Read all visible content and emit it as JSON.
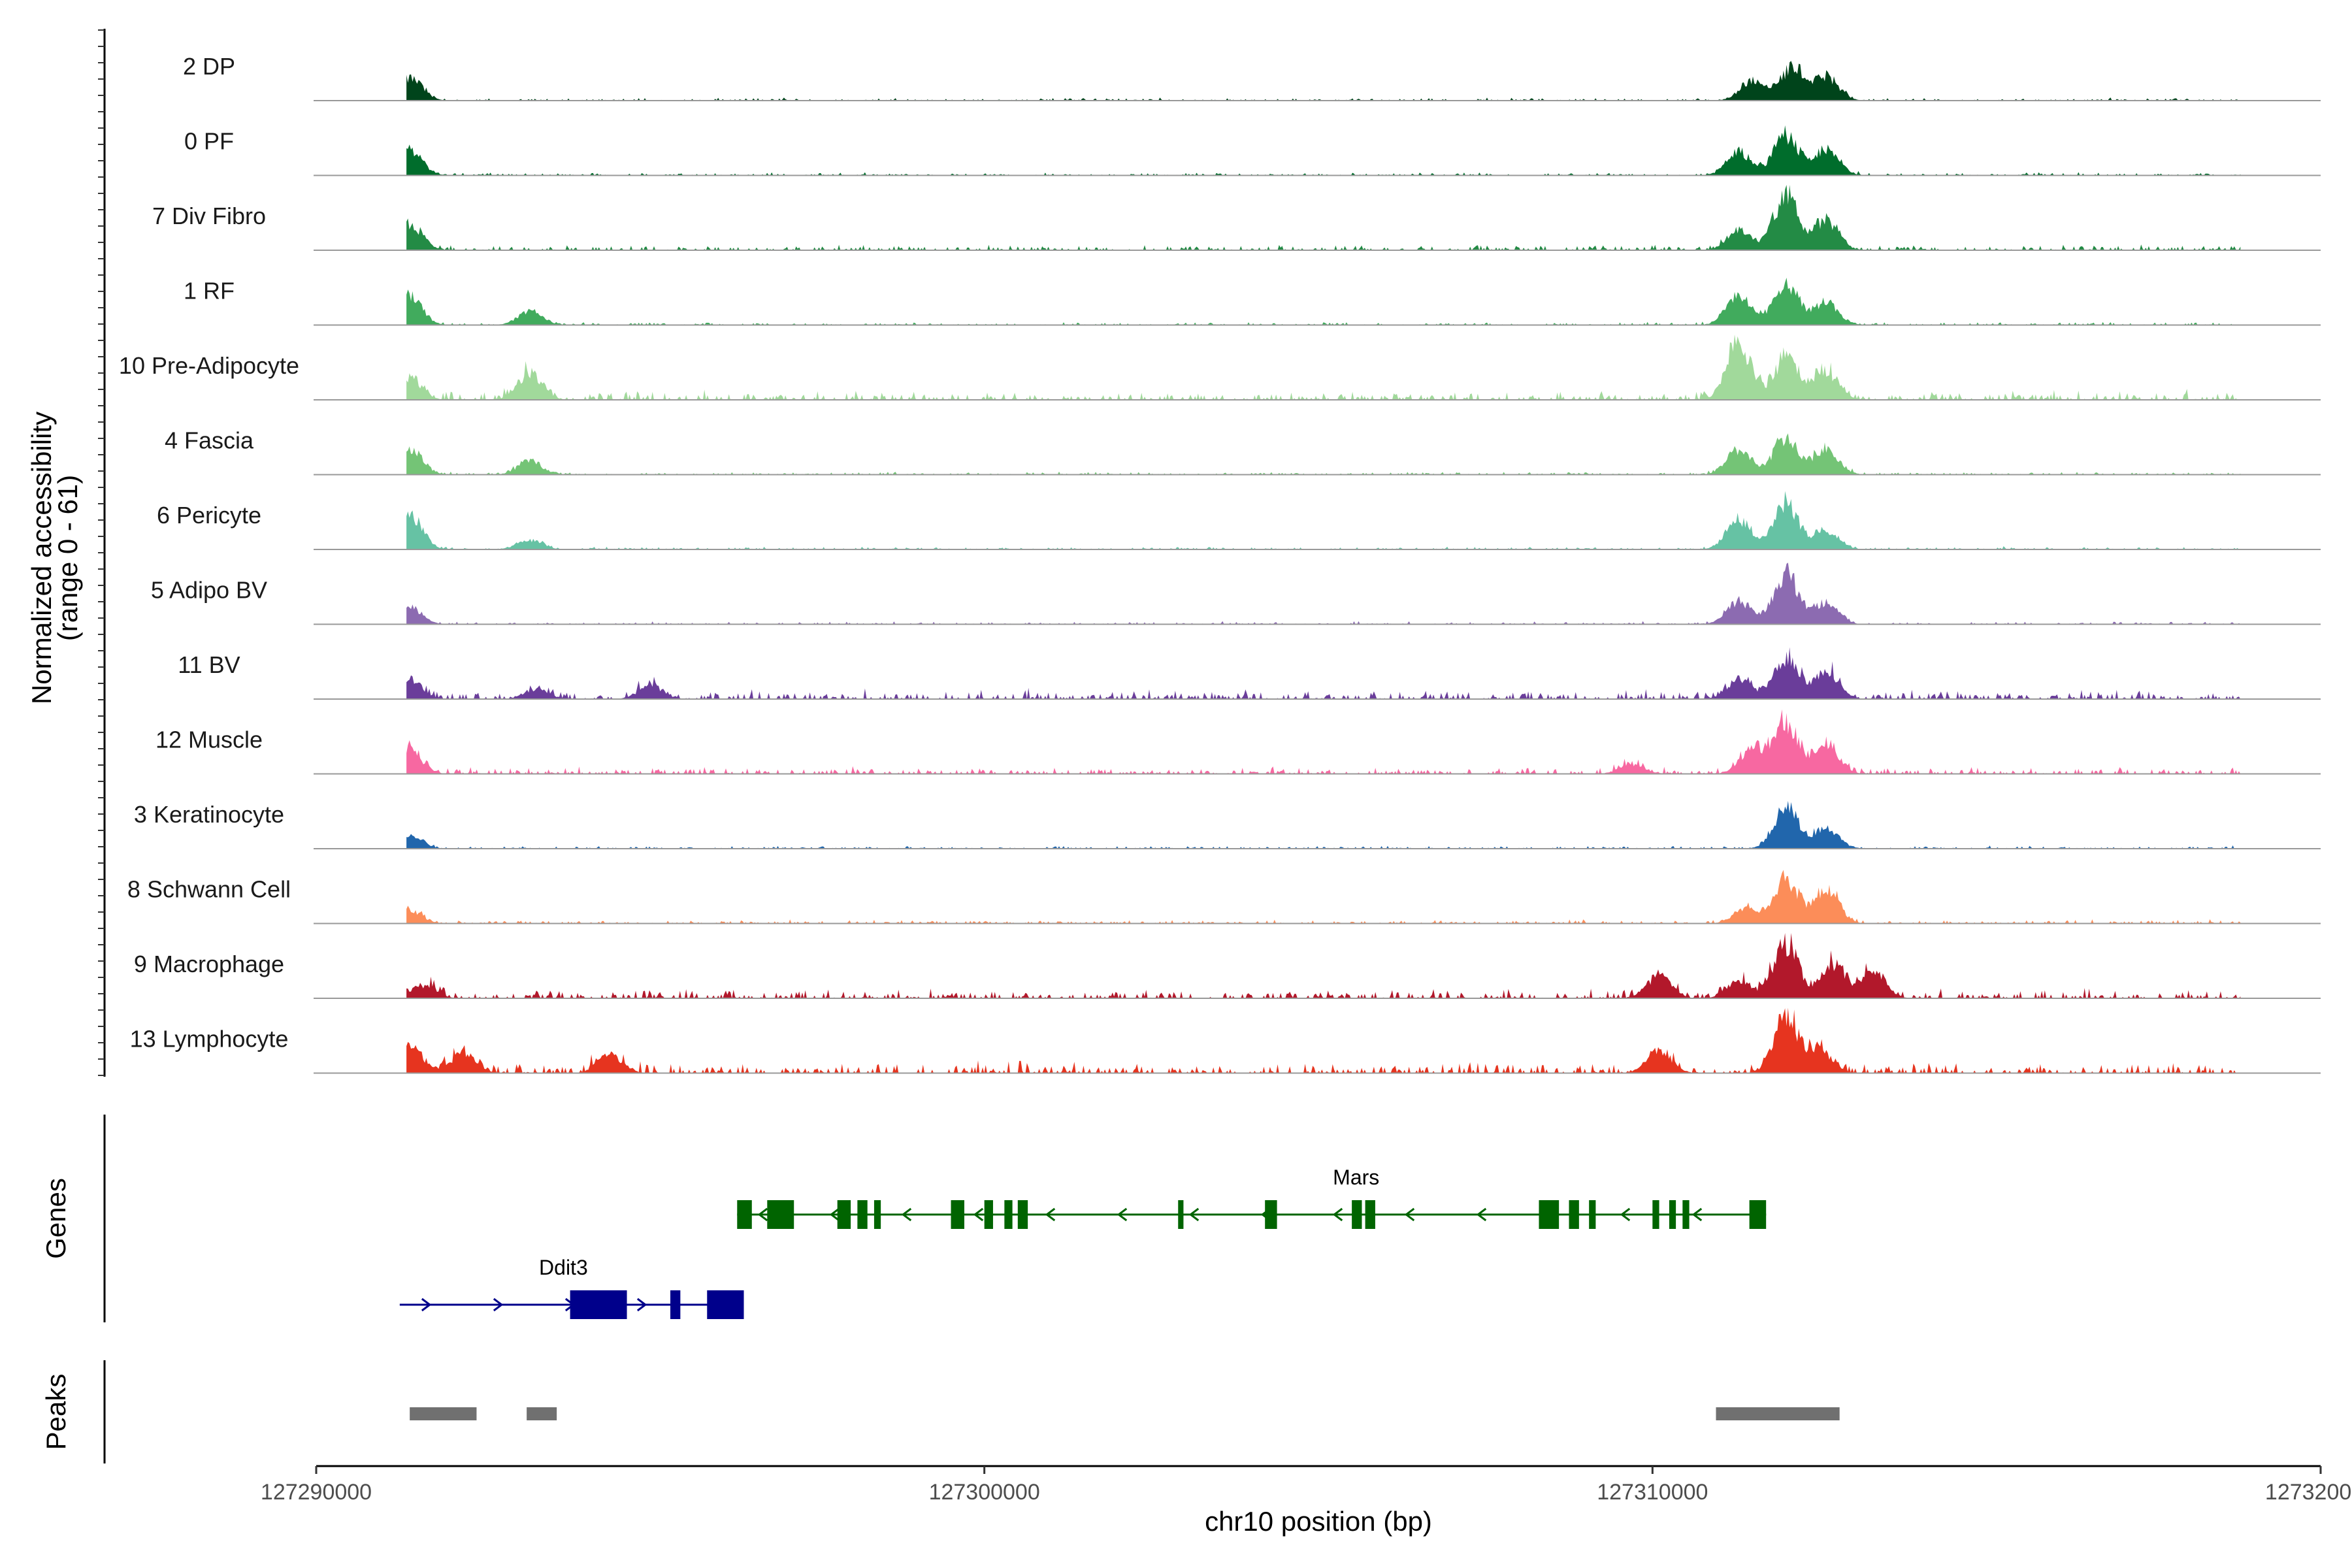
{
  "chart_data": {
    "type": "area",
    "ylabel": "Normalized accessibility",
    "ylabel_range": "(range 0 - 61)",
    "y_range": [
      0,
      61
    ],
    "xlabel": "chr10 position (bp)",
    "x_range": [
      127290000,
      127320000
    ],
    "x_ticks": [
      127290000,
      127300000,
      127310000,
      127320000
    ],
    "x_tick_labels": [
      "127290000",
      "127300000",
      "127310000",
      "127320000"
    ],
    "tracks": [
      {
        "name": "2 DP",
        "color": "#00441b",
        "peaks": [
          [
            127291400,
            0.35
          ],
          [
            127312100,
            0.5
          ],
          [
            127312600,
            0.35
          ],
          [
            127311500,
            0.3
          ]
        ],
        "noise": 0.03
      },
      {
        "name": "0 PF",
        "color": "#006d2c",
        "peaks": [
          [
            127291400,
            0.38
          ],
          [
            127312000,
            0.62
          ],
          [
            127312600,
            0.4
          ],
          [
            127311300,
            0.35
          ]
        ],
        "noise": 0.03
      },
      {
        "name": "7 Div Fibro",
        "color": "#238b45",
        "peaks": [
          [
            127291400,
            0.4
          ],
          [
            127312000,
            0.85
          ],
          [
            127312600,
            0.45
          ],
          [
            127311300,
            0.3
          ]
        ],
        "noise": 0.06
      },
      {
        "name": "1 RF",
        "color": "#41ab5d",
        "peaks": [
          [
            127291400,
            0.45
          ],
          [
            127293200,
            0.2
          ],
          [
            127312000,
            0.6
          ],
          [
            127312600,
            0.35
          ],
          [
            127311300,
            0.45
          ]
        ],
        "noise": 0.03
      },
      {
        "name": "10 Pre-Adipocyte",
        "color": "#a1d99b",
        "peaks": [
          [
            127291400,
            0.3
          ],
          [
            127293200,
            0.42
          ],
          [
            127311300,
            0.8
          ],
          [
            127312000,
            0.62
          ],
          [
            127312600,
            0.4
          ]
        ],
        "noise": 0.1
      },
      {
        "name": "4 Fascia",
        "color": "#74c476",
        "peaks": [
          [
            127291400,
            0.42
          ],
          [
            127293200,
            0.2
          ],
          [
            127312000,
            0.55
          ],
          [
            127312600,
            0.4
          ],
          [
            127311300,
            0.4
          ]
        ],
        "noise": 0.03
      },
      {
        "name": "6 Pericyte",
        "color": "#66c2a4",
        "peaks": [
          [
            127291400,
            0.55
          ],
          [
            127293200,
            0.15
          ],
          [
            127312000,
            0.7
          ],
          [
            127312600,
            0.3
          ],
          [
            127311300,
            0.45
          ]
        ],
        "noise": 0.03
      },
      {
        "name": "5 Adipo BV",
        "color": "#8c6bb1",
        "peaks": [
          [
            127291400,
            0.25
          ],
          [
            127312000,
            0.75
          ],
          [
            127312600,
            0.3
          ],
          [
            127311300,
            0.35
          ]
        ],
        "noise": 0.03
      },
      {
        "name": "11 BV",
        "color": "#6a3d9a",
        "peaks": [
          [
            127291400,
            0.3
          ],
          [
            127293300,
            0.15
          ],
          [
            127295000,
            0.2
          ],
          [
            127312000,
            0.65
          ],
          [
            127312600,
            0.4
          ],
          [
            127311300,
            0.3
          ]
        ],
        "noise": 0.1
      },
      {
        "name": "12 Muscle",
        "color": "#f768a1",
        "peaks": [
          [
            127291400,
            0.35
          ],
          [
            127312000,
            0.75
          ],
          [
            127312600,
            0.45
          ],
          [
            127311500,
            0.4
          ],
          [
            127309700,
            0.15
          ]
        ],
        "noise": 0.08
      },
      {
        "name": "3 Keratinocyte",
        "color": "#2166ac",
        "peaks": [
          [
            127291400,
            0.2
          ],
          [
            127312000,
            0.62
          ],
          [
            127312600,
            0.3
          ]
        ],
        "noise": 0.03
      },
      {
        "name": "8 Schwann Cell",
        "color": "#fc8d59",
        "peaks": [
          [
            127291400,
            0.2
          ],
          [
            127312000,
            0.65
          ],
          [
            127312600,
            0.55
          ],
          [
            127311400,
            0.25
          ]
        ],
        "noise": 0.04
      },
      {
        "name": "9 Macrophage",
        "color": "#b2182b",
        "peaks": [
          [
            127291600,
            0.2
          ],
          [
            127312000,
            0.85
          ],
          [
            127312700,
            0.5
          ],
          [
            127313300,
            0.4
          ],
          [
            127310100,
            0.35
          ],
          [
            127311300,
            0.25
          ]
        ],
        "noise": 0.1
      },
      {
        "name": "13 Lymphocyte",
        "color": "#e6341f",
        "peaks": [
          [
            127291400,
            0.4
          ],
          [
            127292200,
            0.3
          ],
          [
            127294400,
            0.28
          ],
          [
            127312000,
            0.85
          ],
          [
            127312500,
            0.35
          ],
          [
            127310100,
            0.35
          ]
        ],
        "noise": 0.12
      }
    ],
    "genes_label": "Genes",
    "genes": [
      {
        "name": "Mars",
        "strand": "-",
        "start": 127296300,
        "end": 127311700,
        "color": "#006400",
        "exons": [
          [
            127296300,
            127296520
          ],
          [
            127296750,
            127297150
          ],
          [
            127297800,
            127298000
          ],
          [
            127298100,
            127298250
          ],
          [
            127298350,
            127298450
          ],
          [
            127299500,
            127299700
          ],
          [
            127300000,
            127300130
          ],
          [
            127300300,
            127300420
          ],
          [
            127300500,
            127300650
          ],
          [
            127302900,
            127302980
          ],
          [
            127304200,
            127304380
          ],
          [
            127305500,
            127305650
          ],
          [
            127305700,
            127305850
          ],
          [
            127308300,
            127308600
          ],
          [
            127308750,
            127308900
          ],
          [
            127309050,
            127309150
          ],
          [
            127310000,
            127310100
          ],
          [
            127310250,
            127310350
          ],
          [
            127310450,
            127310550
          ],
          [
            127311450,
            127311700
          ]
        ]
      },
      {
        "name": "Ddit3",
        "strand": "+",
        "start": 127291250,
        "end": 127296400,
        "color": "#00008b",
        "exons": [
          [
            127293800,
            127294650
          ],
          [
            127295300,
            127295450
          ],
          [
            127295850,
            127296400
          ]
        ]
      }
    ],
    "peaks_label": "Peaks",
    "peak_regions": [
      [
        127291400,
        127292400
      ],
      [
        127293150,
        127293600
      ],
      [
        127310950,
        127312800
      ]
    ]
  }
}
